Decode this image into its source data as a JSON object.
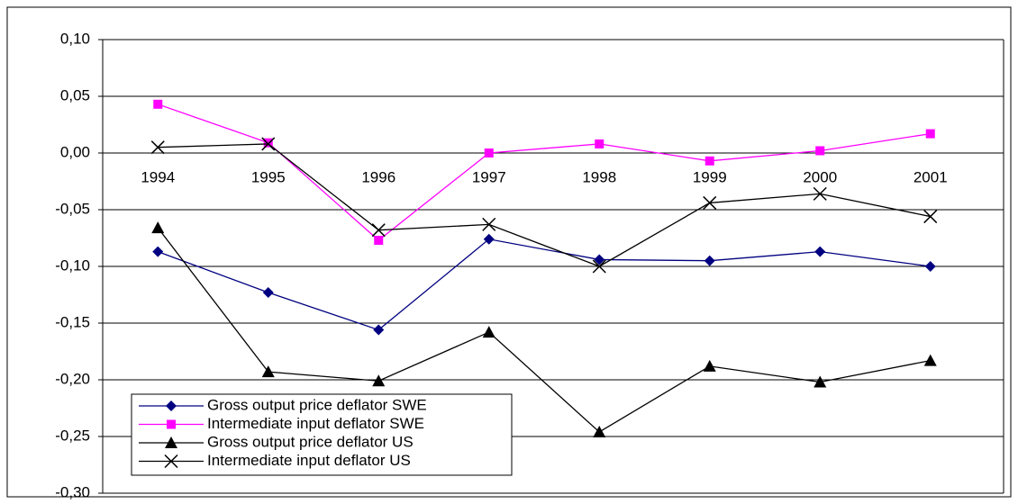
{
  "chart_data": {
    "type": "line",
    "categories": [
      "1994",
      "1995",
      "1996",
      "1997",
      "1998",
      "1999",
      "2000",
      "2001"
    ],
    "series": [
      {
        "name": "Gross output price deflator SWE",
        "color": "#000080",
        "marker": "diamond",
        "values": [
          -0.087,
          -0.123,
          -0.156,
          -0.076,
          -0.094,
          -0.095,
          -0.087,
          -0.1
        ]
      },
      {
        "name": "Intermediate input deflator SWE",
        "color": "#ff00ff",
        "marker": "square",
        "values": [
          0.043,
          0.009,
          -0.077,
          0.0,
          0.008,
          -0.007,
          0.002,
          0.017
        ]
      },
      {
        "name": "Gross output price deflator US",
        "color": "#000000",
        "marker": "triangle",
        "values": [
          -0.066,
          -0.193,
          -0.201,
          -0.158,
          -0.246,
          -0.188,
          -0.202,
          -0.183
        ]
      },
      {
        "name": "Intermediate input deflator US",
        "color": "#000000",
        "marker": "x",
        "values": [
          0.005,
          0.008,
          -0.068,
          -0.063,
          -0.1,
          -0.044,
          -0.036,
          -0.056
        ]
      }
    ],
    "ylim": [
      -0.3,
      0.1
    ],
    "yticks": [
      {
        "value": 0.1,
        "label": "0,10"
      },
      {
        "value": 0.05,
        "label": "0,05"
      },
      {
        "value": 0.0,
        "label": "0,00"
      },
      {
        "value": -0.05,
        "label": "-0,05"
      },
      {
        "value": -0.1,
        "label": "-0,10"
      },
      {
        "value": -0.15,
        "label": "-0,15"
      },
      {
        "value": -0.2,
        "label": "-0,20"
      },
      {
        "value": -0.25,
        "label": "-0,25"
      },
      {
        "value": -0.3,
        "label": "-0,30"
      }
    ],
    "grid": true,
    "legend": "lower left"
  }
}
